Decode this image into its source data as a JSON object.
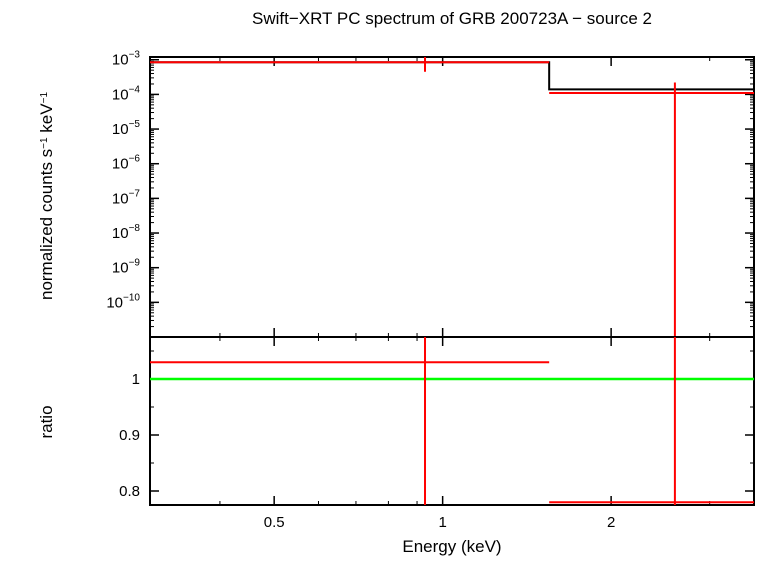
{
  "chart_data": {
    "title": "Swift−XRT PC spectrum of GRB 200723A − source 2",
    "xlabel": "Energy (keV)",
    "xscale": "log",
    "xlim": [
      0.3,
      3.6
    ],
    "x_ticks": [
      {
        "value": 0.5,
        "label": "0.5"
      },
      {
        "value": 1,
        "label": "1"
      },
      {
        "value": 2,
        "label": "2"
      }
    ],
    "panels": [
      {
        "name": "spectrum",
        "type": "step",
        "ylabel_main": "normalized counts s",
        "ylabel_sup1": "−1",
        "ylabel_mid": " keV",
        "ylabel_sup2": "−1",
        "yscale": "log",
        "ylim": [
          1e-11,
          0.0012
        ],
        "y_ticks": [
          {
            "value": 0.001,
            "base": "10",
            "exp": "−3"
          },
          {
            "value": 0.0001,
            "base": "10",
            "exp": "−4"
          },
          {
            "value": 1e-05,
            "base": "10",
            "exp": "−5"
          },
          {
            "value": 1e-06,
            "base": "10",
            "exp": "−6"
          },
          {
            "value": 1e-07,
            "base": "10",
            "exp": "−7"
          },
          {
            "value": 1e-08,
            "base": "10",
            "exp": "−8"
          },
          {
            "value": 1e-09,
            "base": "10",
            "exp": "−9"
          },
          {
            "value": 1e-10,
            "base": "10",
            "exp": "−10"
          }
        ],
        "data_points": [
          {
            "x": 0.93,
            "xerr": [
              0.3,
              1.55
            ],
            "y": 0.00085,
            "yerr": [
              0.00045,
              0.00125
            ]
          },
          {
            "x": 2.6,
            "xerr": [
              1.55,
              3.6
            ],
            "y": 0.00011,
            "yerr": [
              1e-11,
              0.00022
            ]
          }
        ],
        "model_steps": [
          {
            "x0": 0.3,
            "x1": 1.55,
            "y": 0.00085
          },
          {
            "x0": 1.55,
            "x1": 3.6,
            "y": 0.00014
          }
        ]
      },
      {
        "name": "ratio",
        "type": "errorbar",
        "ylabel": "ratio",
        "yscale": "linear",
        "ylim": [
          0.775,
          1.075
        ],
        "y_ticks": [
          {
            "value": 0.8,
            "label": "0.8"
          },
          {
            "value": 0.9,
            "label": "0.9"
          },
          {
            "value": 1,
            "label": "1"
          }
        ],
        "reference_line": 1.0,
        "data_points": [
          {
            "x": 0.93,
            "xerr": [
              0.3,
              1.55
            ],
            "y": 1.03,
            "yerr": [
              0.775,
              1.075
            ]
          },
          {
            "x": 2.6,
            "xerr": [
              1.55,
              3.6
            ],
            "y": 0.78,
            "yerr": [
              0.775,
              1.075
            ]
          }
        ]
      }
    ],
    "colors": {
      "data": "#ff0000",
      "model": "#000000",
      "reference": "#00ff00",
      "axes": "#000000"
    }
  }
}
